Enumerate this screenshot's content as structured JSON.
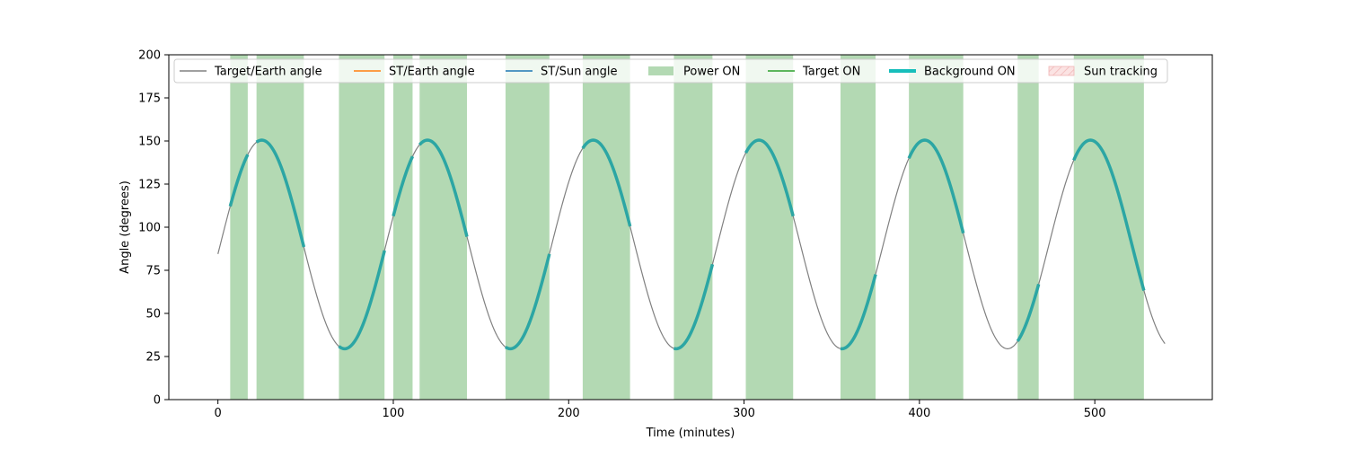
{
  "chart_data": {
    "type": "line",
    "xlabel": "Time (minutes)",
    "ylabel": "Angle (degrees)",
    "xlim": [
      -28,
      567
    ],
    "ylim": [
      0,
      200
    ],
    "xticks": [
      0,
      100,
      200,
      300,
      400,
      500
    ],
    "yticks": [
      0,
      25,
      50,
      75,
      100,
      125,
      150,
      175,
      200
    ],
    "grid": false,
    "legend_position": "top",
    "colors": {
      "target_earth": "#808080",
      "st_earth": "#ff7f0e",
      "st_sun": "#1f77b4",
      "power_on": "#b3d9b3",
      "target_on": "#2ca02c",
      "background_on": "#17bebb",
      "background_on_line": "#2ca6a4",
      "sun_tracking": "#f4c9c9"
    },
    "series": [
      {
        "name": "Target/Earth angle",
        "kind": "line",
        "model": "sinusoid",
        "x_range": [
          0,
          540
        ],
        "mean": 90,
        "amplitude": 60.5,
        "period_minutes": 94.5,
        "peak_at_minutes": 25,
        "minima_minutes": [
          72,
          166,
          261,
          355,
          449,
          540
        ],
        "maxima_minutes": [
          25,
          119,
          213,
          308,
          402,
          496
        ]
      },
      {
        "name": "ST/Earth angle",
        "kind": "line",
        "values": []
      },
      {
        "name": "ST/Sun angle",
        "kind": "line",
        "values": []
      },
      {
        "name": "Power ON",
        "kind": "span",
        "intervals": [
          [
            7,
            17
          ],
          [
            22,
            49
          ],
          [
            69,
            95
          ],
          [
            100,
            111
          ],
          [
            115,
            142
          ],
          [
            164,
            189
          ],
          [
            208,
            235
          ],
          [
            260,
            282
          ],
          [
            301,
            328
          ],
          [
            355,
            375
          ],
          [
            394,
            425
          ],
          [
            456,
            468
          ],
          [
            488,
            528
          ]
        ]
      },
      {
        "name": "Target ON",
        "kind": "line",
        "values": []
      },
      {
        "name": "Background ON",
        "kind": "line-segments",
        "intervals": [
          [
            7,
            17
          ],
          [
            22,
            49
          ],
          [
            69,
            95
          ],
          [
            100,
            111
          ],
          [
            115,
            142
          ],
          [
            164,
            189
          ],
          [
            208,
            235
          ],
          [
            260,
            282
          ],
          [
            301,
            328
          ],
          [
            355,
            375
          ],
          [
            394,
            425
          ],
          [
            456,
            468
          ],
          [
            488,
            528
          ]
        ]
      },
      {
        "name": "Sun tracking",
        "kind": "span",
        "intervals": []
      }
    ],
    "legend": [
      {
        "label": "Target/Earth angle",
        "symbol": "line",
        "color_key": "target_earth"
      },
      {
        "label": "ST/Earth angle",
        "symbol": "line",
        "color_key": "st_earth"
      },
      {
        "label": "ST/Sun angle",
        "symbol": "line",
        "color_key": "st_sun"
      },
      {
        "label": "Power ON",
        "symbol": "patch",
        "color_key": "power_on"
      },
      {
        "label": "Target ON",
        "symbol": "line",
        "color_key": "target_on"
      },
      {
        "label": "Background ON",
        "symbol": "thickline",
        "color_key": "background_on"
      },
      {
        "label": "Sun tracking",
        "symbol": "hatchpatch",
        "color_key": "sun_tracking"
      }
    ]
  }
}
